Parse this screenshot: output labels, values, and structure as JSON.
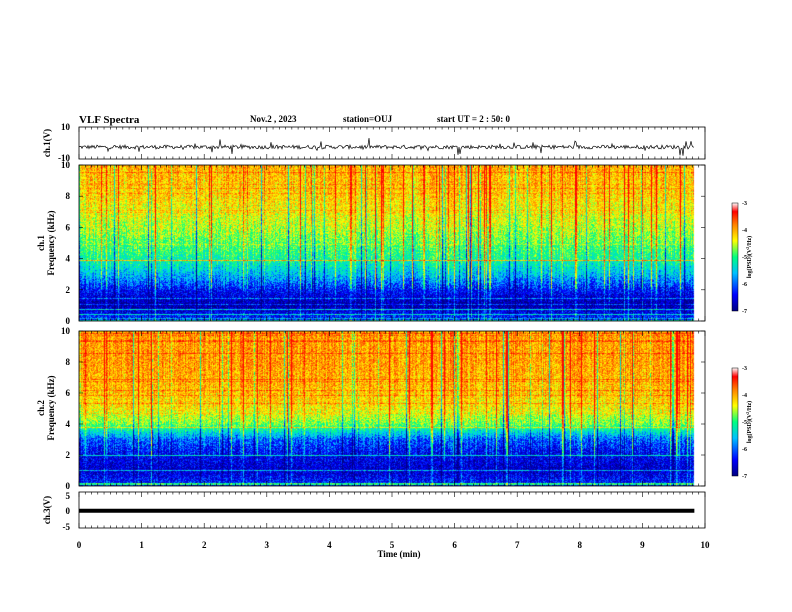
{
  "header": {
    "title": "VLF Spectra",
    "date": "Nov.2 , 2023",
    "station": "station=OUJ",
    "start": "start UT = 2 : 50: 0"
  },
  "chart_data": [
    {
      "type": "line",
      "name": "ch1-waveform",
      "ylabel": "ch.1(V)",
      "ylim": [
        -10,
        10
      ],
      "yticks": [
        "10",
        "-10"
      ],
      "xlim": [
        0,
        10
      ],
      "baseline": -2.5,
      "noise_amplitude": 1.2,
      "data_end_min": 9.83
    },
    {
      "type": "heatmap",
      "name": "ch1-spectrogram",
      "ylabel": "ch.1\nFrequency (kHz)",
      "ylim": [
        0,
        10
      ],
      "yticks": [
        "0",
        "2",
        "4",
        "6",
        "8",
        "10"
      ],
      "xlim": [
        0,
        10
      ],
      "data_end_min": 9.83,
      "colorbar": {
        "label": "log(PSD)(V²/Hz)",
        "range": [
          -7,
          -3
        ],
        "ticks": [
          "-3",
          "-4",
          "-5",
          "-6",
          "-7"
        ]
      },
      "profile": [
        {
          "f_khz": 0.3,
          "log_psd": -6.3
        },
        {
          "f_khz": 1.0,
          "log_psd": -6.8
        },
        {
          "f_khz": 2.0,
          "log_psd": -6.3
        },
        {
          "f_khz": 3.0,
          "log_psd": -5.6
        },
        {
          "f_khz": 4.0,
          "log_psd": -5.1
        },
        {
          "f_khz": 5.0,
          "log_psd": -4.8
        },
        {
          "f_khz": 6.0,
          "log_psd": -4.5
        },
        {
          "f_khz": 8.0,
          "log_psd": -4.1
        },
        {
          "f_khz": 10.0,
          "log_psd": -3.9
        }
      ]
    },
    {
      "type": "heatmap",
      "name": "ch2-spectrogram",
      "ylabel": "ch.2\nFrequency (kHz)",
      "ylim": [
        0,
        10
      ],
      "yticks": [
        "0",
        "2",
        "4",
        "6",
        "8",
        "10"
      ],
      "xlim": [
        0,
        10
      ],
      "data_end_min": 9.83,
      "colorbar": {
        "label": "log(PSD)(V²/Hz)",
        "range": [
          -7,
          -3
        ],
        "ticks": [
          "-3",
          "-4",
          "-5",
          "-6",
          "-7"
        ]
      },
      "profile": [
        {
          "f_khz": 0.3,
          "log_psd": -6.3
        },
        {
          "f_khz": 1.0,
          "log_psd": -6.6
        },
        {
          "f_khz": 2.0,
          "log_psd": -6.4
        },
        {
          "f_khz": 3.0,
          "log_psd": -6.0
        },
        {
          "f_khz": 4.0,
          "log_psd": -4.7
        },
        {
          "f_khz": 5.0,
          "log_psd": -4.2
        },
        {
          "f_khz": 6.0,
          "log_psd": -4.0
        },
        {
          "f_khz": 8.0,
          "log_psd": -3.8
        },
        {
          "f_khz": 10.0,
          "log_psd": -3.8
        }
      ]
    },
    {
      "type": "line",
      "name": "ch3-waveform",
      "ylabel": "ch.3(V)",
      "ylim": [
        -5,
        5
      ],
      "yticks": [
        "5",
        "0",
        "-5"
      ],
      "xlim": [
        0,
        10
      ],
      "baseline": -0.2,
      "data_end_min": 9.83
    }
  ],
  "xaxis": {
    "label": "Time (min)",
    "ticks": [
      "0",
      "1",
      "2",
      "3",
      "4",
      "5",
      "6",
      "7",
      "8",
      "9",
      "10"
    ]
  },
  "colors": {
    "colormap": [
      "#00007f",
      "#0000ff",
      "#00d0ff",
      "#00ff80",
      "#ffff00",
      "#ff8000",
      "#ff0000",
      "#ffffff"
    ]
  }
}
